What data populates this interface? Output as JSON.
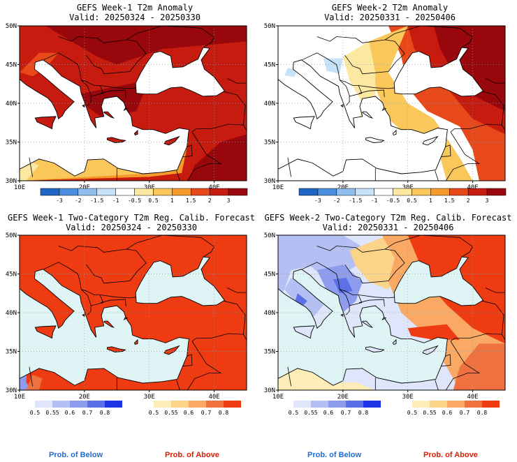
{
  "panels": [
    {
      "title": "GEFS Week-1 T2m Anomaly",
      "valid": "Valid: 20250324 - 20250330",
      "type": "anomaly",
      "lon_ticks": [
        "10E",
        "20E",
        "30E",
        "40E"
      ],
      "lat_ticks": [
        "30N",
        "35N",
        "40N",
        "45N",
        "50N"
      ],
      "colorbar_labels": [
        "-3",
        "-2",
        "-1.5",
        "-1",
        "-0.5",
        "0.5",
        "1",
        "1.5",
        "2",
        "3"
      ]
    },
    {
      "title": "GEFS Week-2 T2m Anomaly",
      "valid": "Valid: 20250331 - 20250406",
      "type": "anomaly",
      "lon_ticks": [
        "10E",
        "20E",
        "30E",
        "40E"
      ],
      "lat_ticks": [
        "30N",
        "35N",
        "40N",
        "45N",
        "50N"
      ],
      "colorbar_labels": [
        "-3",
        "-2",
        "-1.5",
        "-1",
        "-0.5",
        "0.5",
        "1",
        "1.5",
        "2",
        "3"
      ]
    },
    {
      "title": "GEFS Week-1 Two-Category T2m Reg. Calib. Forecast",
      "valid": "Valid: 20250324 - 20250330",
      "type": "probability",
      "lon_ticks": [
        "10E",
        "20E",
        "30E",
        "40E"
      ],
      "lat_ticks": [
        "30N",
        "35N",
        "40N",
        "45N",
        "50N"
      ],
      "below_labels": [
        "0.5",
        "0.55",
        "0.6",
        "0.7",
        "0.8"
      ],
      "above_labels": [
        "0.5",
        "0.55",
        "0.6",
        "0.7",
        "0.8"
      ]
    },
    {
      "title": "GEFS Week-2 Two-Category T2m Reg. Calib. Forecast",
      "valid": "Valid: 20250331 - 20250406",
      "type": "probability",
      "lon_ticks": [
        "10E",
        "20E",
        "30E",
        "40E"
      ],
      "lat_ticks": [
        "30N",
        "35N",
        "40N",
        "45N",
        "50N"
      ],
      "below_labels": [
        "0.5",
        "0.55",
        "0.6",
        "0.7",
        "0.8"
      ],
      "above_labels": [
        "0.5",
        "0.55",
        "0.6",
        "0.7",
        "0.8"
      ]
    }
  ],
  "legend": {
    "below": "Prob. of Below",
    "above": "Prob. of Above",
    "below_color": "#1e6ed8",
    "above_color": "#e01c00"
  },
  "colors": {
    "anomaly_scale": [
      "#2166c4",
      "#4a8fde",
      "#8fbfee",
      "#c7e1f7",
      "#ffffff",
      "#fce8a0",
      "#f9c75a",
      "#f69a2b",
      "#e8491a",
      "#c81b10",
      "#98070b"
    ],
    "below_scale": [
      "#dfe6fb",
      "#b4c0f3",
      "#8d9cec",
      "#5b6fe6",
      "#1d33e6"
    ],
    "above_scale": [
      "#feedb8",
      "#fbd389",
      "#f9a964",
      "#f07140",
      "#ef3b12"
    ],
    "sea_prob": "#dff5f5",
    "map_bg": "#f2f2f2"
  }
}
